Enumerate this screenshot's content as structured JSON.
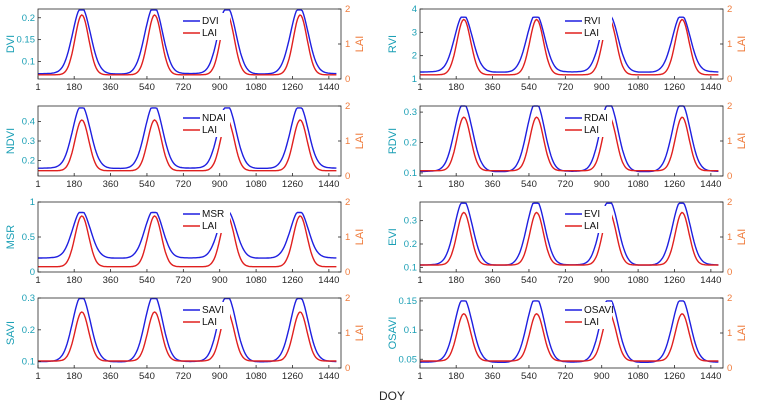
{
  "colors": {
    "vi": "#1f1fe0",
    "lai": "#e0201f",
    "left_axis": "#1a9fb5",
    "right_axis": "#ef7a3a",
    "axis": "#262626"
  },
  "figure": {
    "xlabel": "DOY"
  },
  "chart_data": [
    {
      "type": "line",
      "ylabel": "DVI",
      "y2label": "LAI",
      "xlim": [
        1,
        1500
      ],
      "ylim": [
        0.06,
        0.22
      ],
      "y2lim": [
        0,
        2
      ],
      "yticks": [
        "0.1",
        "0.15",
        "0.2"
      ],
      "ytick_values": [
        0.1,
        0.15,
        0.2
      ],
      "y2ticks": [
        "0",
        "1",
        "2"
      ],
      "y2tick_values": [
        0,
        1,
        2
      ],
      "xticks": [
        "1",
        "180",
        "360",
        "540",
        "720",
        "900",
        "1080",
        "1260",
        "1440"
      ],
      "xtick_values": [
        1,
        180,
        360,
        540,
        720,
        900,
        1080,
        1260,
        1440
      ],
      "legend": [
        "DVI",
        "LAI"
      ],
      "vi_base": 0.072,
      "vi_peak": 0.218,
      "lai_base": 0.12,
      "lai_peak": 1.83
    },
    {
      "type": "line",
      "ylabel": "RVI",
      "y2label": "LAI",
      "xlim": [
        1,
        1500
      ],
      "ylim": [
        1,
        4
      ],
      "y2lim": [
        0,
        2
      ],
      "yticks": [
        "1",
        "2",
        "3",
        "4"
      ],
      "ytick_values": [
        1,
        2,
        3,
        4
      ],
      "y2ticks": [
        "0",
        "1",
        "2"
      ],
      "y2tick_values": [
        0,
        1,
        2
      ],
      "xticks": [
        "1",
        "180",
        "360",
        "540",
        "720",
        "900",
        "1080",
        "1260",
        "1440"
      ],
      "xtick_values": [
        1,
        180,
        360,
        540,
        720,
        900,
        1080,
        1260,
        1440
      ],
      "legend": [
        "RVI",
        "LAI"
      ],
      "vi_base": 1.3,
      "vi_peak": 3.65,
      "lai_base": 0.12,
      "lai_peak": 1.7
    },
    {
      "type": "line",
      "ylabel": "NDVI",
      "y2label": "LAI",
      "xlim": [
        1,
        1500
      ],
      "ylim": [
        0.12,
        0.48
      ],
      "y2lim": [
        0,
        2
      ],
      "yticks": [
        "0.2",
        "0.3",
        "0.4"
      ],
      "ytick_values": [
        0.2,
        0.3,
        0.4
      ],
      "y2ticks": [
        "0",
        "1",
        "2"
      ],
      "y2tick_values": [
        0,
        1,
        2
      ],
      "xticks": [
        "1",
        "180",
        "360",
        "540",
        "720",
        "900",
        "1080",
        "1260",
        "1440"
      ],
      "xtick_values": [
        1,
        180,
        360,
        540,
        720,
        900,
        1080,
        1260,
        1440
      ],
      "legend": [
        "NDAI",
        "LAI"
      ],
      "vi_base": 0.16,
      "vi_peak": 0.47,
      "lai_base": 0.15,
      "lai_peak": 1.6
    },
    {
      "type": "line",
      "ylabel": "RDVI",
      "y2label": "LAI",
      "xlim": [
        1,
        1500
      ],
      "ylim": [
        0.09,
        0.32
      ],
      "y2lim": [
        0,
        2
      ],
      "yticks": [
        "0.1",
        "0.2",
        "0.3"
      ],
      "ytick_values": [
        0.1,
        0.2,
        0.3
      ],
      "y2ticks": [
        "0",
        "1",
        "2"
      ],
      "y2tick_values": [
        0,
        1,
        2
      ],
      "xticks": [
        "1",
        "180",
        "360",
        "540",
        "720",
        "900",
        "1080",
        "1260",
        "1440"
      ],
      "xtick_values": [
        1,
        180,
        360,
        540,
        720,
        900,
        1080,
        1260,
        1440
      ],
      "legend": [
        "RDAI",
        "LAI"
      ],
      "vi_base": 0.105,
      "vi_peak": 0.32,
      "lai_base": 0.15,
      "lai_peak": 1.68
    },
    {
      "type": "line",
      "ylabel": "MSR",
      "y2label": "LAI",
      "xlim": [
        1,
        1500
      ],
      "ylim": [
        0,
        1
      ],
      "y2lim": [
        0,
        2
      ],
      "yticks": [
        "0",
        "0.5",
        "1"
      ],
      "ytick_values": [
        0,
        0.5,
        1
      ],
      "y2ticks": [
        "0",
        "1",
        "2"
      ],
      "y2tick_values": [
        0,
        1,
        2
      ],
      "xticks": [
        "1",
        "180",
        "360",
        "540",
        "720",
        "900",
        "1080",
        "1260",
        "1440"
      ],
      "xtick_values": [
        1,
        180,
        360,
        540,
        720,
        900,
        1080,
        1260,
        1440
      ],
      "legend": [
        "MSR",
        "LAI"
      ],
      "vi_base": 0.2,
      "vi_peak": 0.85,
      "lai_base": 0.15,
      "lai_peak": 1.6
    },
    {
      "type": "line",
      "ylabel": "EVI",
      "y2label": "LAI",
      "xlim": [
        1,
        1500
      ],
      "ylim": [
        0.08,
        0.38
      ],
      "y2lim": [
        0,
        2
      ],
      "yticks": [
        "0.1",
        "0.2",
        "0.3"
      ],
      "ytick_values": [
        0.1,
        0.2,
        0.3
      ],
      "y2ticks": [
        "0",
        "1",
        "2"
      ],
      "y2tick_values": [
        0,
        1,
        2
      ],
      "xticks": [
        "1",
        "180",
        "360",
        "540",
        "720",
        "900",
        "1080",
        "1260",
        "1440"
      ],
      "xtick_values": [
        1,
        180,
        360,
        540,
        720,
        900,
        1080,
        1260,
        1440
      ],
      "legend": [
        "EVI",
        "LAI"
      ],
      "vi_base": 0.11,
      "vi_peak": 0.375,
      "lai_base": 0.2,
      "lai_peak": 1.7
    },
    {
      "type": "line",
      "ylabel": "SAVI",
      "y2label": "LAI",
      "xlim": [
        1,
        1500
      ],
      "ylim": [
        0.08,
        0.3
      ],
      "y2lim": [
        0,
        2
      ],
      "yticks": [
        "0.1",
        "0.2",
        "0.3"
      ],
      "ytick_values": [
        0.1,
        0.2,
        0.3
      ],
      "y2ticks": [
        "0",
        "1",
        "2"
      ],
      "y2tick_values": [
        0,
        1,
        2
      ],
      "xticks": [
        "1",
        "180",
        "360",
        "540",
        "720",
        "900",
        "1080",
        "1260",
        "1440"
      ],
      "xtick_values": [
        1,
        180,
        360,
        540,
        720,
        900,
        1080,
        1260,
        1440
      ],
      "legend": [
        "SAVI",
        "LAI"
      ],
      "vi_base": 0.1,
      "vi_peak": 0.298,
      "lai_base": 0.2,
      "lai_peak": 1.6
    },
    {
      "type": "line",
      "ylabel": "OSAVI",
      "y2label": "LAI",
      "xlim": [
        1,
        1500
      ],
      "ylim": [
        0.035,
        0.155
      ],
      "y2lim": [
        0,
        2
      ],
      "yticks": [
        "0.05",
        "0.1",
        "0.15"
      ],
      "ytick_values": [
        0.05,
        0.1,
        0.15
      ],
      "y2ticks": [
        "0",
        "1",
        "2"
      ],
      "y2tick_values": [
        0,
        1,
        2
      ],
      "xticks": [
        "1",
        "180",
        "360",
        "540",
        "720",
        "900",
        "1080",
        "1260",
        "1440"
      ],
      "xtick_values": [
        1,
        180,
        360,
        540,
        720,
        900,
        1080,
        1260,
        1440
      ],
      "legend": [
        "OSAVI",
        "LAI"
      ],
      "vi_base": 0.045,
      "vi_peak": 0.15,
      "lai_base": 0.2,
      "lai_peak": 1.55
    }
  ]
}
